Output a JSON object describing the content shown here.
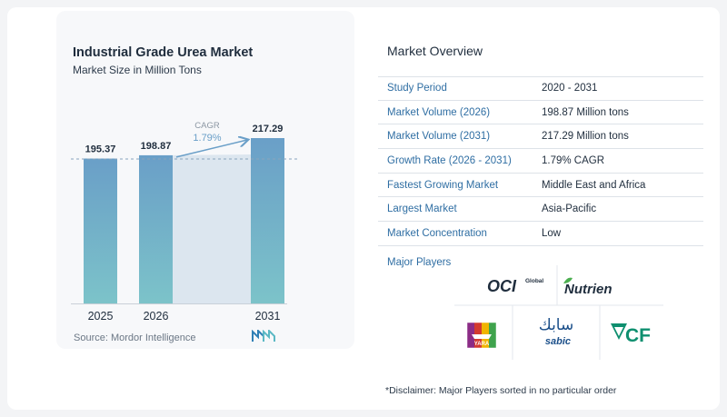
{
  "chart": {
    "title": "Industrial Grade Urea Market",
    "subtitle": "Market Size in Million Tons",
    "source": "Source:  Mordor Intelligence",
    "cagr_label": "CAGR",
    "cagr_value": "1.79%",
    "bar_color": "#6a9fc8",
    "bar_color_bottom": "#7cc3c9",
    "shade_color": "#dce6ef"
  },
  "chart_data": {
    "type": "bar",
    "categories": [
      "2025",
      "2026",
      "2031"
    ],
    "values": [
      195.37,
      198.87,
      217.29
    ],
    "data_labels": [
      "195.37",
      "198.87",
      "217.29"
    ],
    "title": "Industrial Grade Urea Market",
    "subtitle": "Market Size in Million Tons",
    "annotation": "CAGR 1.79%",
    "source": "Source:  Mordor Intelligence"
  },
  "overview": {
    "title": "Market Overview",
    "rows": [
      {
        "label": "Study Period",
        "value": "2020 - 2031"
      },
      {
        "label": "Market Volume (2026)",
        "value": "198.87 Million tons"
      },
      {
        "label": "Market Volume (2031)",
        "value": "217.29 Million tons"
      },
      {
        "label": "Growth Rate (2026 - 2031)",
        "value": "1.79% CAGR"
      },
      {
        "label": "Fastest Growing Market",
        "value": "Middle East and Africa"
      },
      {
        "label": "Largest Market",
        "value": "Asia-Pacific"
      },
      {
        "label": "Market Concentration",
        "value": "Low"
      }
    ]
  },
  "players": {
    "label": "Major Players",
    "logos": [
      {
        "name": "OCI Global",
        "text": "OCI",
        "sub": "Global"
      },
      {
        "name": "Nutrien",
        "text": "Nutrien"
      },
      {
        "name": "Yara",
        "text": "YARA"
      },
      {
        "name": "SABIC",
        "text": "sabic",
        "arabic": "سابك"
      },
      {
        "name": "CF",
        "text": "CF"
      }
    ]
  },
  "disclaimer": "*Disclaimer: Major Players sorted in no particular order"
}
